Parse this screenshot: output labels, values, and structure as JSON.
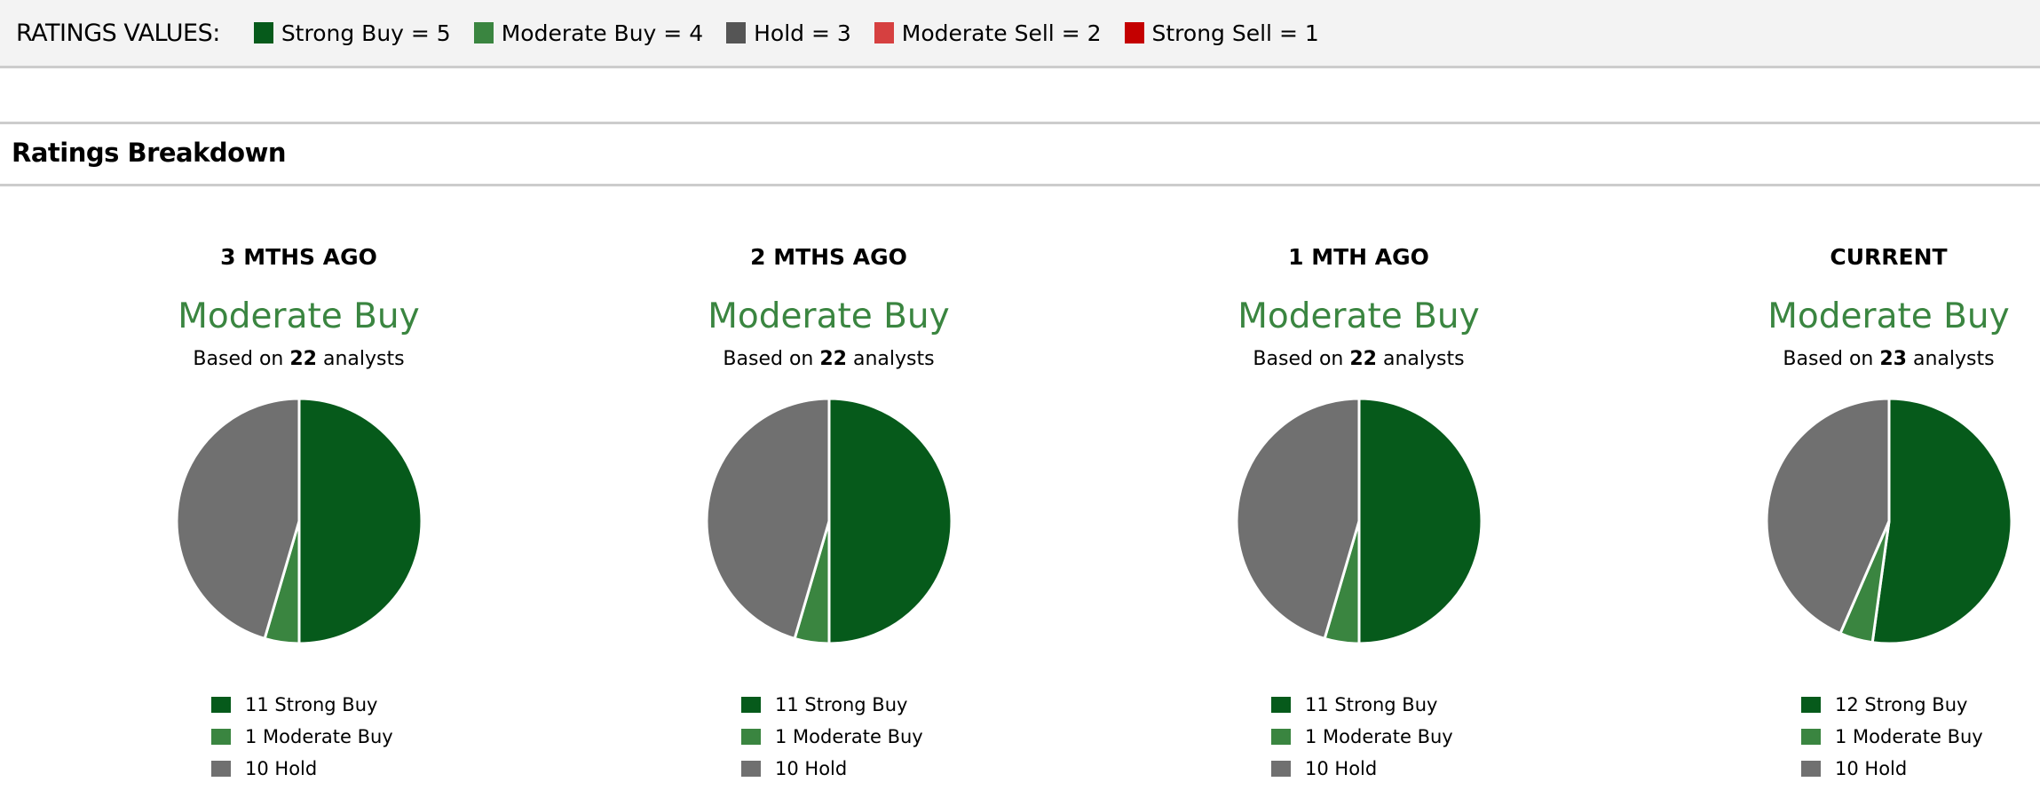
{
  "ratings_values": {
    "label": "RATINGS VALUES:",
    "items": [
      {
        "label": "Strong Buy = 5",
        "color": "#065a1b"
      },
      {
        "label": "Moderate Buy = 4",
        "color": "#3a8540"
      },
      {
        "label": "Hold = 3",
        "color": "#555555"
      },
      {
        "label": "Moderate Sell = 2",
        "color": "#d64040"
      },
      {
        "label": "Strong Sell = 1",
        "color": "#c40000"
      }
    ]
  },
  "section_title": "Ratings Breakdown",
  "chart_data": [
    {
      "type": "pie",
      "title": "3 MTHS AGO",
      "rating": "Moderate Buy",
      "based_prefix": "Based on",
      "analysts": "22",
      "based_suffix": "analysts",
      "slices": [
        {
          "label": "11 Strong Buy",
          "value": 11,
          "color": "#065a1b"
        },
        {
          "label": "1 Moderate Buy",
          "value": 1,
          "color": "#3a8540"
        },
        {
          "label": "10 Hold",
          "value": 10,
          "color": "#707070"
        }
      ]
    },
    {
      "type": "pie",
      "title": "2 MTHS AGO",
      "rating": "Moderate Buy",
      "based_prefix": "Based on",
      "analysts": "22",
      "based_suffix": "analysts",
      "slices": [
        {
          "label": "11 Strong Buy",
          "value": 11,
          "color": "#065a1b"
        },
        {
          "label": "1 Moderate Buy",
          "value": 1,
          "color": "#3a8540"
        },
        {
          "label": "10 Hold",
          "value": 10,
          "color": "#707070"
        }
      ]
    },
    {
      "type": "pie",
      "title": "1 MTH AGO",
      "rating": "Moderate Buy",
      "based_prefix": "Based on",
      "analysts": "22",
      "based_suffix": "analysts",
      "slices": [
        {
          "label": "11 Strong Buy",
          "value": 11,
          "color": "#065a1b"
        },
        {
          "label": "1 Moderate Buy",
          "value": 1,
          "color": "#3a8540"
        },
        {
          "label": "10 Hold",
          "value": 10,
          "color": "#707070"
        }
      ]
    },
    {
      "type": "pie",
      "title": "CURRENT",
      "rating": "Moderate Buy",
      "based_prefix": "Based on",
      "analysts": "23",
      "based_suffix": "analysts",
      "slices": [
        {
          "label": "12 Strong Buy",
          "value": 12,
          "color": "#065a1b"
        },
        {
          "label": "1 Moderate Buy",
          "value": 1,
          "color": "#3a8540"
        },
        {
          "label": "10 Hold",
          "value": 10,
          "color": "#707070"
        }
      ]
    }
  ]
}
